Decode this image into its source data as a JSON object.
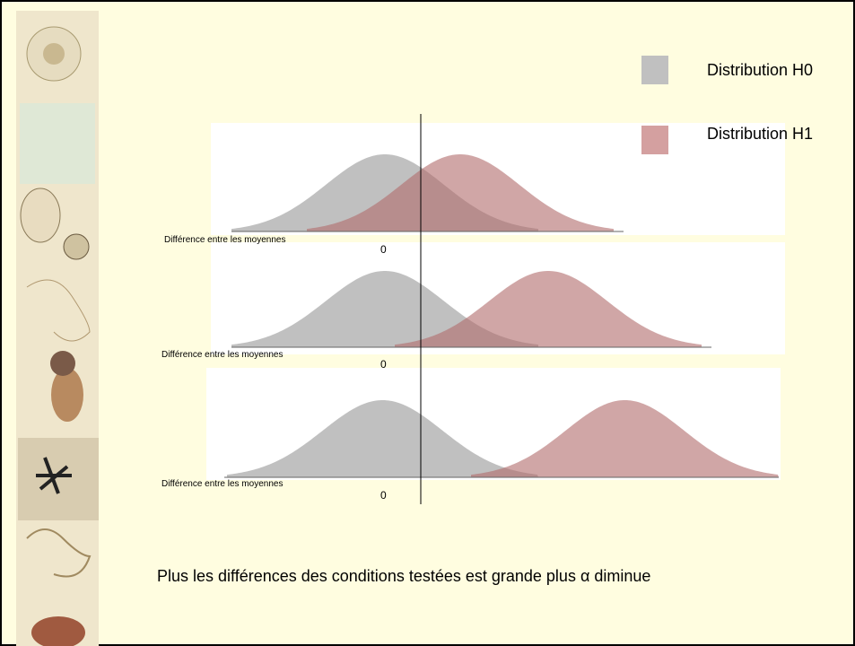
{
  "legend": [
    {
      "label": "Distribution H0"
    },
    {
      "label": "Distribution H1"
    }
  ],
  "panels": [
    {
      "axis_label": "Différence entre les moyennes",
      "zero_label": "0"
    },
    {
      "axis_label": "Différence entre les moyennes",
      "zero_label": "0"
    },
    {
      "axis_label": "Différence entre les moyennes",
      "zero_label": "0"
    }
  ],
  "caption": "Plus les différences des conditions testées est grande plus α diminue"
}
